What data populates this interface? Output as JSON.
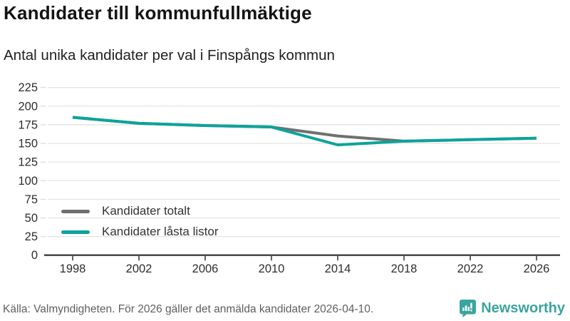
{
  "header": {
    "title": "Kandidater till kommunfullmäktige",
    "subtitle": "Antal unika kandidater per val i Finspångs kommun"
  },
  "chart_data": {
    "type": "line",
    "title": "Kandidater till kommunfullmäktige",
    "subtitle": "Antal unika kandidater per val i Finspångs kommun",
    "x": [
      1998,
      2002,
      2006,
      2010,
      2014,
      2018,
      2022,
      2026
    ],
    "series": [
      {
        "name": "Kandidater totalt",
        "color": "#6f6f6f",
        "values": [
          185,
          177,
          174,
          172,
          160,
          153,
          155,
          157
        ]
      },
      {
        "name": "Kandidater låsta listor",
        "color": "#0ca39b",
        "values": [
          185,
          177,
          174,
          172,
          148,
          153,
          155,
          157
        ]
      }
    ],
    "xlabel": "",
    "ylabel": "",
    "ylim": [
      0,
      225
    ],
    "ytick_step": 25,
    "grid": "horizontal",
    "gridline_color": "#e4e4e4",
    "axis_color": "#3d3d3d",
    "tick_label_color": "#2e2e2e",
    "legend_position": "inside-bottom-left"
  },
  "footer": {
    "source": "Källa: Valmyndigheten. För 2026 gäller det anmälda kandidater 2026-04-10.",
    "brand": "Newsworthy",
    "brand_color": "#3aa59e"
  }
}
